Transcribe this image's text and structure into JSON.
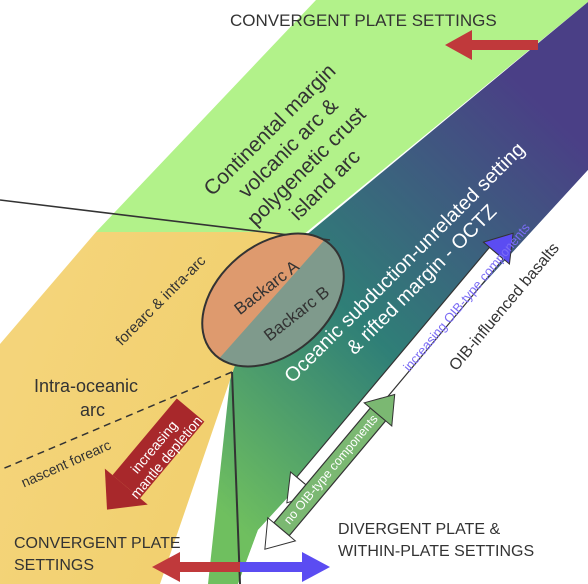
{
  "labels": {
    "top_title": "CONVERGENT PLATE SETTINGS",
    "continental_margin": [
      "Continental margin",
      "volcanic arc &",
      "polygenetic crust",
      "island arc"
    ],
    "oceanic": [
      "Oceanic subduction-unrelated setting",
      "& rifted margin - OCTZ"
    ],
    "backarc_a": "Backarc A",
    "backarc_b": "Backarc B",
    "forearc_intra": "forearc & intra-arc",
    "intra_oceanic_arc": [
      "Intra-oceanic",
      "arc"
    ],
    "nascent_forearc": "nascent forearc",
    "mantle_depletion": [
      "increasing",
      "mantle depletion"
    ],
    "oib_increasing": "increasing OIB-type components",
    "oib_influenced": "OIB-influenced basalts",
    "no_oib": "no OIB-type components",
    "bottom_left_title": [
      "CONVERGENT PLATE",
      "SETTINGS"
    ],
    "bottom_right_title": [
      "DIVERGENT PLATE &",
      "WITHIN-PLATE SETTINGS"
    ]
  },
  "colors": {
    "green_field": "#b2f28a",
    "purple_field": "#4a3f86",
    "orange_field": "#f4cf74",
    "backarc_a_fill": "#de9a6e",
    "backarc_b_fill": "#7f9a8c",
    "red_arrow": "#c0393b",
    "blue_arrow": "#5b4cf2",
    "green_arrow": "#7bb872",
    "dark_red_arrow": "#a8282b",
    "text_dark": "#333333",
    "text_white": "#ffffff"
  }
}
